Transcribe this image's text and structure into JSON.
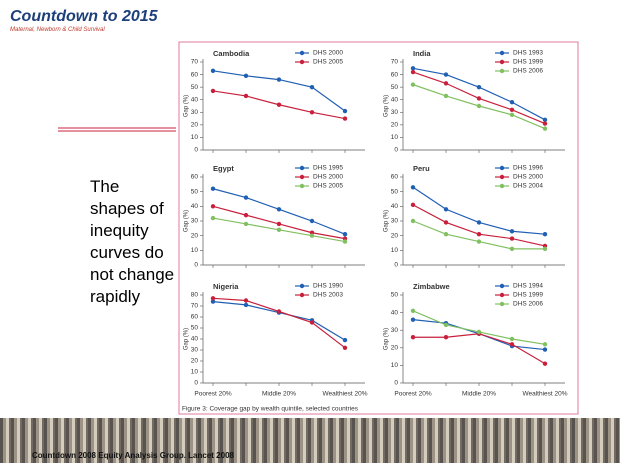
{
  "logo": {
    "title": "Countdown to 2015",
    "subtitle": "Maternal, Newborn & Child Survival"
  },
  "body_text": "The shapes of inequity curves do not change rapidly",
  "caption": "Figure 3: Coverage gap by wealth quintile, selected countries",
  "footer": "Countdown 2008 Equity Analysis Group. Lancet 2008",
  "chart_data": [
    {
      "type": "line",
      "title": "Cambodia",
      "ylabel": "Gap (%)",
      "categories": [
        null,
        null,
        null,
        null,
        null
      ],
      "ylim": [
        0,
        70
      ],
      "yticks": [
        0,
        10,
        20,
        30,
        40,
        50,
        60,
        70
      ],
      "series": [
        {
          "name": "DHS 2000",
          "color": "#1f5fb4",
          "values": [
            63,
            59,
            56,
            50,
            31
          ]
        },
        {
          "name": "DHS 2005",
          "color": "#c8203c",
          "values": [
            47,
            43,
            36,
            30,
            25
          ]
        }
      ]
    },
    {
      "type": "line",
      "title": "India",
      "ylabel": "Gap (%)",
      "categories": [
        null,
        null,
        null,
        null,
        null
      ],
      "ylim": [
        0,
        70
      ],
      "yticks": [
        0,
        10,
        20,
        30,
        40,
        50,
        60,
        70
      ],
      "series": [
        {
          "name": "DHS 1993",
          "color": "#1f5fb4",
          "values": [
            65,
            60,
            50,
            38,
            24
          ]
        },
        {
          "name": "DHS 1999",
          "color": "#c8203c",
          "values": [
            62,
            53,
            41,
            32,
            21
          ]
        },
        {
          "name": "DHS 2006",
          "color": "#80c060",
          "values": [
            52,
            43,
            35,
            28,
            17
          ]
        }
      ]
    },
    {
      "type": "line",
      "title": "Egypt",
      "ylabel": "Gap (%)",
      "categories": [
        null,
        null,
        null,
        null,
        null
      ],
      "ylim": [
        0,
        60
      ],
      "yticks": [
        0,
        10,
        20,
        30,
        40,
        50,
        60
      ],
      "series": [
        {
          "name": "DHS 1995",
          "color": "#1f5fb4",
          "values": [
            52,
            46,
            38,
            30,
            21
          ]
        },
        {
          "name": "DHS 2000",
          "color": "#c8203c",
          "values": [
            40,
            34,
            28,
            22,
            18
          ]
        },
        {
          "name": "DHS 2005",
          "color": "#80c060",
          "values": [
            32,
            28,
            24,
            20,
            16
          ]
        }
      ]
    },
    {
      "type": "line",
      "title": "Peru",
      "ylabel": "Gap (%)",
      "categories": [
        null,
        null,
        null,
        null,
        null
      ],
      "ylim": [
        0,
        60
      ],
      "yticks": [
        0,
        10,
        20,
        30,
        40,
        50,
        60
      ],
      "series": [
        {
          "name": "DHS 1996",
          "color": "#1f5fb4",
          "values": [
            53,
            38,
            29,
            23,
            21
          ]
        },
        {
          "name": "DHS 2000",
          "color": "#c8203c",
          "values": [
            41,
            29,
            21,
            18,
            13
          ]
        },
        {
          "name": "DHS 2004",
          "color": "#80c060",
          "values": [
            30,
            21,
            16,
            11,
            11
          ]
        }
      ]
    },
    {
      "type": "line",
      "title": "Nigeria",
      "ylabel": "Gap (%)",
      "categories": [
        "Poorest 20%",
        null,
        "Middle 20%",
        null,
        "Wealthiest 20%"
      ],
      "ylim": [
        0,
        80
      ],
      "yticks": [
        0,
        10,
        20,
        30,
        40,
        50,
        60,
        70,
        80
      ],
      "series": [
        {
          "name": "DHS 1990",
          "color": "#1f5fb4",
          "values": [
            74,
            71,
            64,
            57,
            39
          ]
        },
        {
          "name": "DHS 2003",
          "color": "#c8203c",
          "values": [
            77,
            75,
            65,
            55,
            32
          ]
        }
      ]
    },
    {
      "type": "line",
      "title": "Zimbabwe",
      "ylabel": "Gap (%)",
      "categories": [
        "Poorest 20%",
        null,
        "Middle 20%",
        null,
        "Wealthiest 20%"
      ],
      "ylim": [
        0,
        50
      ],
      "yticks": [
        0,
        10,
        20,
        30,
        40,
        50
      ],
      "series": [
        {
          "name": "DHS 1994",
          "color": "#1f5fb4",
          "values": [
            36,
            34,
            28,
            21,
            19
          ]
        },
        {
          "name": "DHS 1999",
          "color": "#c8203c",
          "values": [
            26,
            26,
            28,
            22,
            11
          ]
        },
        {
          "name": "DHS 2006",
          "color": "#80c060",
          "values": [
            41,
            33,
            29,
            25,
            22
          ]
        }
      ]
    }
  ]
}
